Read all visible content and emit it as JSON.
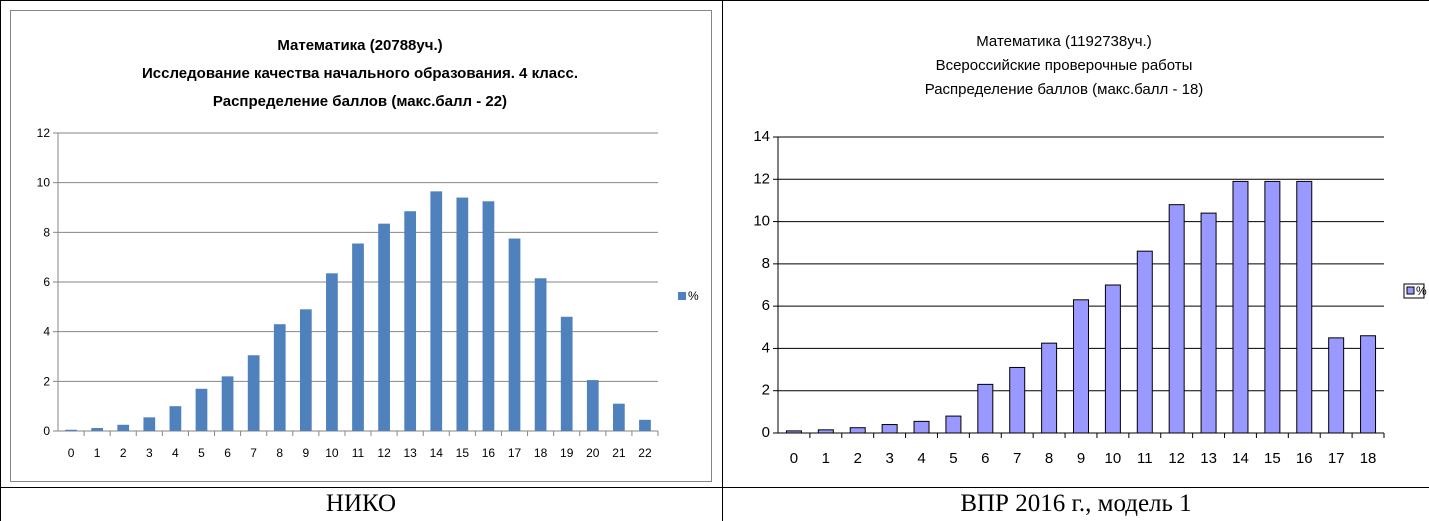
{
  "chart_data": [
    {
      "type": "bar",
      "title_lines": [
        "Математика (20788уч.)",
        "Исследование качества начального образования.   4 класс.",
        "Распределение баллов (макс.балл - 22)"
      ],
      "categories": [
        "0",
        "1",
        "2",
        "3",
        "4",
        "5",
        "6",
        "7",
        "8",
        "9",
        "10",
        "11",
        "12",
        "13",
        "14",
        "15",
        "16",
        "17",
        "18",
        "19",
        "20",
        "21",
        "22"
      ],
      "series": [
        {
          "name": "%",
          "values": [
            0.05,
            0.12,
            0.25,
            0.55,
            1.0,
            1.7,
            2.2,
            3.05,
            4.3,
            4.9,
            6.35,
            7.55,
            8.35,
            8.85,
            9.65,
            9.4,
            9.25,
            7.75,
            6.15,
            4.6,
            2.05,
            1.1,
            0.45
          ]
        }
      ],
      "ylim": [
        0,
        12
      ],
      "yticks": [
        "0",
        "2",
        "4",
        "6",
        "8",
        "10",
        "12"
      ],
      "grid": true,
      "legend_position": "right",
      "colors": {
        "bar": "#4F81BD",
        "grid": "#868686"
      }
    },
    {
      "type": "bar",
      "title_lines": [
        "Математика (1192738уч.)",
        "Всероссийские проверочные работы",
        "Распределение баллов (макс.балл - 18)"
      ],
      "categories": [
        "0",
        "1",
        "2",
        "3",
        "4",
        "5",
        "6",
        "7",
        "8",
        "9",
        "10",
        "11",
        "12",
        "13",
        "14",
        "15",
        "16",
        "17",
        "18"
      ],
      "series": [
        {
          "name": "%",
          "values": [
            0.1,
            0.15,
            0.25,
            0.4,
            0.55,
            0.8,
            2.3,
            3.1,
            4.25,
            6.3,
            7.0,
            8.6,
            10.8,
            10.4,
            11.9,
            11.9,
            11.9,
            4.5,
            4.6
          ]
        }
      ],
      "ylim": [
        0,
        14
      ],
      "yticks": [
        "0",
        "2",
        "4",
        "6",
        "8",
        "10",
        "12",
        "14"
      ],
      "grid": true,
      "legend_position": "right",
      "colors": {
        "bar": "#9999FF",
        "bar_stroke": "#000000",
        "grid": "#000000"
      }
    }
  ],
  "captions": {
    "left": "НИКО",
    "right": "ВПР 2016 г., модель 1"
  }
}
